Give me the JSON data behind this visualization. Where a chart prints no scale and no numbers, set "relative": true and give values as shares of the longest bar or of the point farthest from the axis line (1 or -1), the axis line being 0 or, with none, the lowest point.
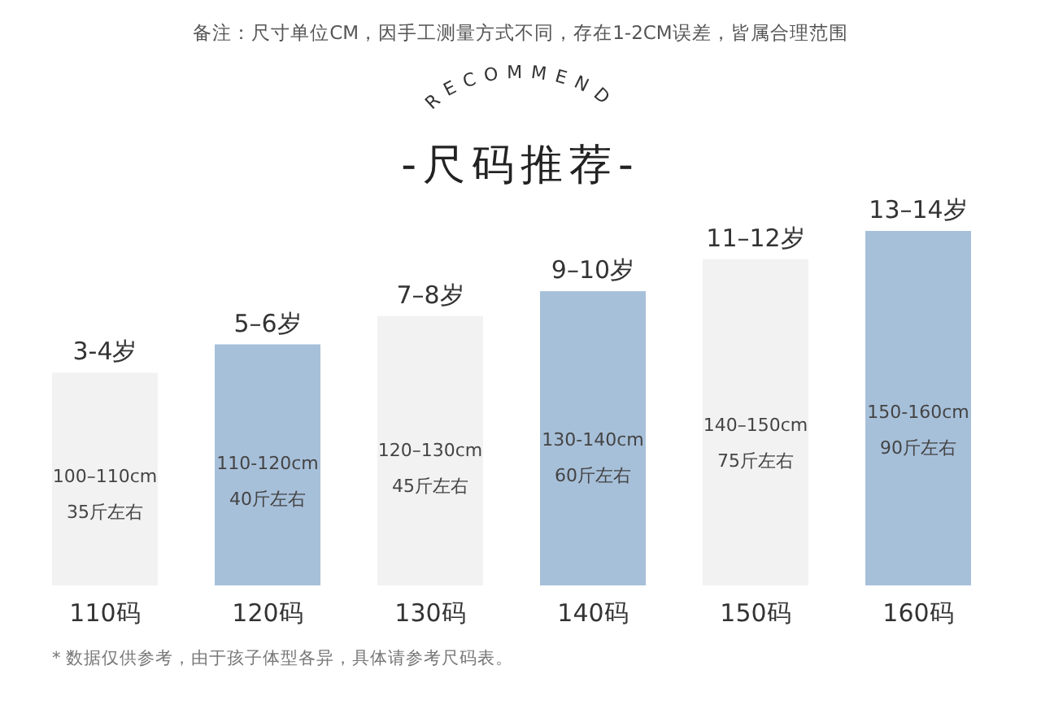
{
  "chart_data": {
    "type": "bar",
    "relative": true,
    "title": "-尺码推荐-",
    "subtitle": "RECOMMEND",
    "categories": [
      "110码",
      "120码",
      "130码",
      "140码",
      "150码",
      "160码"
    ],
    "values": [
      0.6,
      0.68,
      0.76,
      0.83,
      0.92,
      1
    ],
    "colors": [
      "#f2f2f2",
      "#a7c0da",
      "#f2f2f2",
      "#a7c0da",
      "#f2f2f2",
      "#a7c0da"
    ],
    "annotations": [
      "备注：尺寸单位CM，因手工测量方式不同，存在1-2CM误差，皆属合理范围",
      {
        "text": "3-4岁",
        "x": "110码",
        "y": 0.6
      },
      {
        "text": "5–6岁",
        "x": "120码",
        "y": 0.68
      },
      {
        "text": "7–8岁",
        "x": "130码",
        "y": 0.76
      },
      {
        "text": "9–10岁",
        "x": "140码",
        "y": 0.83
      },
      {
        "text": "11–12岁",
        "x": "150码",
        "y": 0.92
      },
      {
        "text": "13–14岁",
        "x": "160码",
        "y": 1
      },
      "100–110cm\n35斤左右",
      "110-120cm\n40斤左右",
      "120–130cm\n45斤左右",
      "130-140cm\n60斤左右",
      "140–150cm\n75斤左右",
      "150-160cm\n90斤左右",
      "* 数据仅供参考，由于孩子体型各异，具体请参考尺码表。"
    ]
  }
}
